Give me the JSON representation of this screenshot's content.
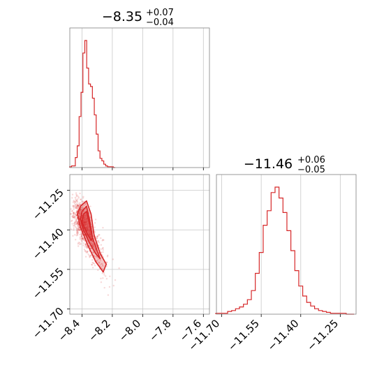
{
  "chart_data": [
    {
      "type": "histogram",
      "panel": "top-left",
      "title_main": "−8.35",
      "title_sup": "+0.07",
      "title_sub": "−0.04",
      "xlim": [
        -8.48,
        -7.56
      ],
      "grid": true,
      "color": "#d62728",
      "bins_x": [
        -8.475,
        -8.4625,
        -8.45,
        -8.4375,
        -8.425,
        -8.4125,
        -8.4,
        -8.3875,
        -8.375,
        -8.3625,
        -8.35,
        -8.3375,
        -8.325,
        -8.3125,
        -8.3,
        -8.2875,
        -8.275,
        -8.2625,
        -8.25,
        -8.2375,
        -8.225,
        -8.2125,
        -8.2,
        -8.1875
      ],
      "counts": [
        1,
        2,
        2,
        12,
        26,
        61,
        90,
        137,
        152,
        119,
        100,
        97,
        83,
        63,
        40,
        20,
        11,
        8,
        4,
        2,
        1,
        1,
        1,
        0
      ]
    },
    {
      "type": "histogram",
      "panel": "bottom-right",
      "title_main": "−11.46",
      "title_sup": "+0.06",
      "title_sub": "−0.05",
      "xlim": [
        -11.72,
        -11.19
      ],
      "xticks": [
        "−11.70",
        "−11.55",
        "−11.40",
        "−11.25"
      ],
      "grid": true,
      "color": "#d62728",
      "bins_x": [
        -11.715,
        -11.7,
        -11.685,
        -11.67,
        -11.655,
        -11.64,
        -11.625,
        -11.61,
        -11.595,
        -11.58,
        -11.565,
        -11.55,
        -11.535,
        -11.52,
        -11.505,
        -11.49,
        -11.475,
        -11.46,
        -11.445,
        -11.43,
        -11.415,
        -11.4,
        -11.385,
        -11.37,
        -11.355,
        -11.34,
        -11.325,
        -11.31,
        -11.295,
        -11.28,
        -11.265,
        -11.25,
        -11.235,
        -11.22,
        -11.205
      ],
      "counts": [
        1,
        1,
        1,
        3,
        4,
        6,
        8,
        11,
        16,
        26,
        45,
        68,
        98,
        114,
        134,
        140,
        128,
        112,
        92,
        70,
        48,
        31,
        20,
        13,
        9,
        6,
        4,
        3,
        2,
        1,
        1,
        1,
        1,
        0,
        0
      ]
    },
    {
      "type": "scatter-contour",
      "panel": "bottom-left",
      "xlim": [
        -8.48,
        -7.56
      ],
      "ylim": [
        -11.72,
        -11.19
      ],
      "xticks": [
        "−8.4",
        "−8.2",
        "−8.0",
        "−7.8",
        "−7.6"
      ],
      "yticks": [
        "−11.25",
        "−11.40",
        "−11.55",
        "−11.70"
      ],
      "grid": true,
      "color": "#d62728",
      "correlation_axis": {
        "x_start": -8.42,
        "y_start": -11.35,
        "x_end": -8.17,
        "y_end": -11.62
      },
      "contour_levels": [
        {
          "level": 1,
          "points": [
            [
              -8.41,
              -11.31
            ],
            [
              -8.37,
              -11.29
            ],
            [
              -8.34,
              -11.34
            ],
            [
              -8.32,
              -11.42
            ],
            [
              -8.28,
              -11.49
            ],
            [
              -8.24,
              -11.53
            ],
            [
              -8.26,
              -11.56
            ],
            [
              -8.31,
              -11.52
            ],
            [
              -8.36,
              -11.46
            ],
            [
              -8.41,
              -11.39
            ],
            [
              -8.43,
              -11.34
            ]
          ]
        },
        {
          "level": 2,
          "points": [
            [
              -8.4,
              -11.33
            ],
            [
              -8.37,
              -11.31
            ],
            [
              -8.35,
              -11.36
            ],
            [
              -8.33,
              -11.43
            ],
            [
              -8.3,
              -11.48
            ],
            [
              -8.28,
              -11.51
            ],
            [
              -8.31,
              -11.49
            ],
            [
              -8.35,
              -11.45
            ],
            [
              -8.39,
              -11.4
            ],
            [
              -8.41,
              -11.36
            ]
          ]
        },
        {
          "level": 3,
          "points": [
            [
              -8.39,
              -11.34
            ],
            [
              -8.37,
              -11.33
            ],
            [
              -8.35,
              -11.38
            ],
            [
              -8.33,
              -11.43
            ],
            [
              -8.34,
              -11.44
            ],
            [
              -8.37,
              -11.41
            ],
            [
              -8.4,
              -11.37
            ]
          ]
        }
      ]
    }
  ]
}
